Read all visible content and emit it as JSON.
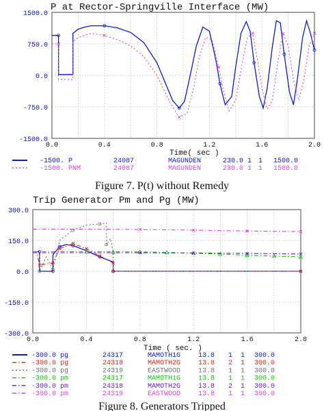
{
  "chart_data": [
    {
      "type": "line",
      "title": "P at Rector-Springville Interface (MW)",
      "xlabel": "Time( sec )",
      "ylabel": "",
      "xlim": [
        0.0,
        2.0
      ],
      "ylim": [
        -1500,
        1500
      ],
      "x_ticks": [
        "0.0",
        "0.4",
        "0.8",
        "1.2",
        "1.6",
        "2.0"
      ],
      "y_ticks": [
        "1500.0",
        "750.0",
        "0.0",
        "-750.0",
        "-1500.0"
      ],
      "x_tick_values": [
        0.0,
        0.4,
        0.8,
        1.2,
        1.6,
        2.0
      ],
      "y_tick_values": [
        1500,
        750,
        0,
        -750,
        -1500
      ],
      "grid": true,
      "legend_position": "below",
      "series": [
        {
          "name": "P",
          "color": "#0a1ad0",
          "style": "solid",
          "x": [
            0.0,
            0.03,
            0.05,
            0.05,
            0.16,
            0.16,
            0.2,
            0.25,
            0.3,
            0.4,
            0.5,
            0.6,
            0.7,
            0.8,
            0.86,
            0.92,
            0.97,
            1.01,
            1.05,
            1.1,
            1.15,
            1.2,
            1.25,
            1.28,
            1.32,
            1.37,
            1.4,
            1.44,
            1.48,
            1.51,
            1.54,
            1.58,
            1.61,
            1.64,
            1.68,
            1.71,
            1.74,
            1.77,
            1.81,
            1.84,
            1.87,
            1.91,
            1.94,
            1.97,
            2.0
          ],
          "y": [
            950,
            950,
            950,
            20,
            20,
            1000,
            1100,
            1150,
            1180,
            1180,
            1130,
            1020,
            780,
            300,
            -150,
            -600,
            -780,
            -620,
            -50,
            700,
            1150,
            1050,
            350,
            -200,
            -700,
            -500,
            200,
            1000,
            1280,
            1050,
            300,
            -500,
            -780,
            -300,
            700,
            1300,
            1250,
            500,
            -400,
            -700,
            -100,
            900,
            1300,
            1000,
            600
          ],
          "legend": [
            "-1500. P",
            "24087",
            "MAGUNDEN",
            "230.0",
            "1",
            "1",
            "1500.0"
          ]
        },
        {
          "name": "PNM",
          "color": "#e040e0",
          "style": "dotted",
          "x": [
            0.0,
            0.03,
            0.05,
            0.05,
            0.16,
            0.16,
            0.2,
            0.3,
            0.4,
            0.5,
            0.6,
            0.7,
            0.8,
            0.9,
            0.97,
            1.03,
            1.08,
            1.12,
            1.17,
            1.22,
            1.27,
            1.31,
            1.35,
            1.4,
            1.45,
            1.49,
            1.53,
            1.57,
            1.6,
            1.64,
            1.68,
            1.72,
            1.76,
            1.8,
            1.84,
            1.88,
            1.92,
            1.96,
            2.0
          ],
          "y": [
            750,
            750,
            750,
            -100,
            -100,
            800,
            900,
            1000,
            950,
            850,
            700,
            450,
            0,
            -650,
            -1000,
            -900,
            -300,
            400,
            900,
            850,
            200,
            -400,
            -850,
            -600,
            300,
            900,
            1000,
            300,
            -300,
            -800,
            -600,
            300,
            1000,
            700,
            -100,
            -600,
            -100,
            700,
            1000
          ],
          "legend": [
            "-1500. PNM",
            "24087",
            "MAGUNDEN",
            "230.0",
            "1",
            "1",
            "1500.0"
          ]
        }
      ],
      "caption": "Figure 7. P(t) without Remedy"
    },
    {
      "type": "line",
      "title": "Trip Generator Pm and Pg (MW)",
      "xlabel": "Time ( sec. )",
      "ylabel": "",
      "xlim": [
        0.0,
        2.0
      ],
      "ylim": [
        -300,
        300
      ],
      "x_ticks": [
        "0.0",
        "0.4",
        "0.8",
        "1.2",
        "1.6",
        "2.0"
      ],
      "y_ticks": [
        "300.0",
        "150.0",
        "0.0",
        "-150.0",
        "-300.0"
      ],
      "x_tick_values": [
        0.0,
        0.4,
        0.8,
        1.2,
        1.6,
        2.0
      ],
      "y_tick_values": [
        300,
        150,
        0,
        -150,
        -300
      ],
      "grid": true,
      "legend_position": "below",
      "series": [
        {
          "name": "pg",
          "color": "#0a1ad0",
          "style": "solid",
          "x": [
            0.0,
            0.03,
            0.05,
            0.05,
            0.15,
            0.15,
            0.2,
            0.25,
            0.3,
            0.4,
            0.5,
            0.6,
            0.6,
            2.0
          ],
          "y": [
            95,
            95,
            95,
            0,
            0,
            80,
            120,
            130,
            125,
            100,
            70,
            45,
            0,
            0
          ],
          "legend": [
            "-300.0 pg",
            "24317",
            "MAMOTH1G",
            "13.8",
            "1",
            "1",
            "300.0"
          ]
        },
        {
          "name": "pg",
          "color": "#e02020",
          "style": "dashdot",
          "x": [
            0.0,
            0.03,
            0.05,
            0.15,
            0.2,
            0.3,
            0.4,
            0.5,
            0.6,
            0.6,
            2.0
          ],
          "y": [
            90,
            90,
            30,
            40,
            110,
            135,
            110,
            75,
            40,
            0,
            0
          ],
          "legend": [
            "-300.0 pg",
            "24318",
            "MAMOTH2G",
            "13.8",
            "2",
            "1",
            "300.0"
          ]
        },
        {
          "name": "pg",
          "color": "#707070",
          "style": "dotted",
          "x": [
            0.0,
            0.05,
            0.05,
            0.1,
            0.15,
            0.2,
            0.3,
            0.4,
            0.5,
            0.55,
            0.55,
            0.58,
            0.6,
            0.6,
            2.0
          ],
          "y": [
            95,
            95,
            0,
            70,
            10,
            150,
            200,
            225,
            230,
            235,
            130,
            160,
            90,
            0,
            0
          ],
          "legend": [
            "-300.0 pg",
            "24319",
            "EASTWOOD",
            "13.8",
            "1",
            "1",
            "300.0"
          ]
        },
        {
          "name": "pm",
          "color": "#10c010",
          "style": "dashdot",
          "x": [
            0.0,
            0.2,
            0.4,
            0.6,
            0.8,
            1.0,
            1.2,
            1.4,
            1.6,
            1.8,
            2.0
          ],
          "y": [
            95,
            95,
            95,
            95,
            94,
            92,
            88,
            83,
            78,
            74,
            70
          ],
          "legend": [
            "-300.0 pm",
            "24317",
            "MAMOTH1G",
            "13.8",
            "1",
            "1",
            "300.0"
          ]
        },
        {
          "name": "pm",
          "color": "#6020c0",
          "style": "dashdot",
          "x": [
            0.0,
            0.4,
            0.8,
            1.2,
            1.6,
            2.0
          ],
          "y": [
            90,
            90,
            90,
            89,
            87,
            84
          ],
          "legend": [
            "-300.0 pm",
            "24318",
            "MAMOTH2G",
            "13.8",
            "2",
            "1",
            "300.0"
          ]
        },
        {
          "name": "pm",
          "color": "#e040e0",
          "style": "dashdot",
          "x": [
            0.0,
            0.4,
            0.8,
            1.2,
            1.6,
            2.0
          ],
          "y": [
            205,
            205,
            203,
            200,
            196,
            193
          ],
          "legend": [
            "-300.0 pm",
            "24319",
            "EASTWOOD",
            "13.8",
            "1",
            "1",
            "300.0"
          ]
        }
      ],
      "caption": "Figure 8. Generators Tripped"
    }
  ]
}
